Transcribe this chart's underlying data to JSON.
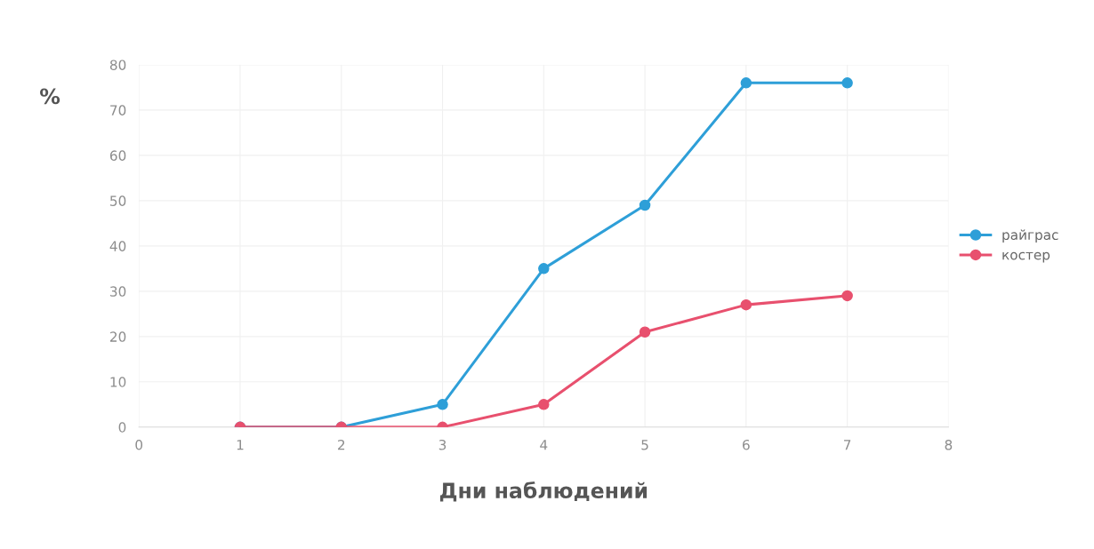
{
  "chart_data": {
    "type": "line",
    "xlabel": "Дни наблюдений",
    "ylabel": "%",
    "xlim": [
      0,
      8
    ],
    "xticks": [
      0,
      1,
      2,
      3,
      4,
      5,
      6,
      7,
      8
    ],
    "ylim": [
      0,
      80
    ],
    "yticks": [
      0,
      10,
      20,
      30,
      40,
      50,
      60,
      70,
      80
    ],
    "x": [
      1,
      2,
      3,
      4,
      5,
      6,
      7
    ],
    "series": [
      {
        "name": "райграс",
        "color": "#2e9fd8",
        "values": [
          0,
          0,
          5,
          35,
          49,
          76,
          76
        ]
      },
      {
        "name": "костер",
        "color": "#e8506e",
        "values": [
          0,
          0,
          0,
          5,
          21,
          27,
          29
        ]
      }
    ],
    "marker": "circle",
    "line_style": "solid",
    "grid": true,
    "legend": "right"
  }
}
